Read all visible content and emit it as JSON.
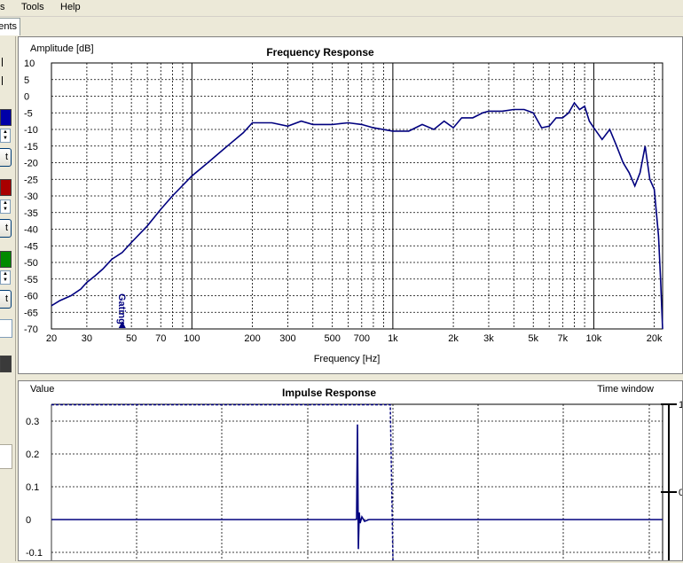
{
  "menu": {
    "items": [
      "s",
      "Tools",
      "Help"
    ]
  },
  "tab": {
    "active_label": "ents"
  },
  "left_panel": {
    "button_label": "t",
    "swatch_colors": [
      "#0000a8",
      "#a80000",
      "#008a00",
      "#3a3a3a"
    ],
    "scroll_up": "▲",
    "scroll_down": "▼"
  },
  "frequency_response": {
    "title": "Frequency Response",
    "ylabel": "Amplitude [dB]",
    "xlabel": "Frequency [Hz]",
    "gating_label": "Gating",
    "line_color": "#00007f"
  },
  "impulse_response": {
    "title": "Impulse Response",
    "ylabel": "Value",
    "window_label": "Time window",
    "right_tick_labels": [
      "1",
      "0"
    ],
    "line_color": "#00007f"
  },
  "chart_data": [
    {
      "type": "line",
      "title": "Frequency Response",
      "xlabel": "Frequency [Hz]",
      "ylabel": "Amplitude [dB]",
      "xscale": "log",
      "xlim": [
        20,
        22000
      ],
      "ylim": [
        -70,
        10
      ],
      "grid": true,
      "x_ticks": [
        20,
        30,
        50,
        70,
        100,
        200,
        300,
        500,
        700,
        1000,
        2000,
        3000,
        5000,
        7000,
        10000,
        20000
      ],
      "x_tick_labels": [
        "20",
        "30",
        "50",
        "70",
        "100",
        "200",
        "300",
        "500",
        "700",
        "1k",
        "2k",
        "3k",
        "5k",
        "7k",
        "10k",
        "20k"
      ],
      "y_ticks": [
        10,
        5,
        0,
        -5,
        -10,
        -15,
        -20,
        -25,
        -30,
        -35,
        -40,
        -45,
        -50,
        -55,
        -60,
        -65,
        -70
      ],
      "gating_frequency": 45,
      "x": [
        20,
        22,
        25,
        28,
        30,
        33,
        36,
        40,
        45,
        50,
        60,
        70,
        80,
        100,
        120,
        150,
        180,
        200,
        250,
        300,
        350,
        400,
        500,
        600,
        700,
        800,
        1000,
        1200,
        1400,
        1600,
        1800,
        2000,
        2200,
        2500,
        2800,
        3000,
        3500,
        4000,
        4500,
        5000,
        5500,
        6000,
        6500,
        7000,
        7500,
        8000,
        8500,
        9000,
        9500,
        10000,
        11000,
        12000,
        13000,
        14000,
        15000,
        16000,
        17000,
        18000,
        19000,
        20000,
        21000,
        21500,
        22000
      ],
      "y": [
        -63,
        -61.5,
        -60,
        -58,
        -56,
        -54,
        -52,
        -49,
        -47,
        -44,
        -39,
        -34,
        -30,
        -24,
        -20,
        -15,
        -11,
        -8,
        -8,
        -9,
        -7.5,
        -8.5,
        -8.5,
        -8,
        -8.5,
        -9.5,
        -10.5,
        -10.5,
        -8.5,
        -10,
        -7.5,
        -9.5,
        -6.5,
        -6.5,
        -5,
        -4.5,
        -4.5,
        -4,
        -4,
        -5,
        -9.5,
        -9,
        -6.5,
        -6.5,
        -5,
        -2,
        -4,
        -3,
        -7.5,
        -9.5,
        -13,
        -10,
        -15,
        -20,
        -23,
        -27,
        -23,
        -15,
        -25,
        -28,
        -42,
        -55,
        -70
      ]
    },
    {
      "type": "line",
      "title": "Impulse Response",
      "ylabel": "Value",
      "ylim": [
        -0.1,
        0.35
      ],
      "y_ticks": [
        0.3,
        0.2,
        0.1,
        0,
        -0.1
      ],
      "grid": true,
      "window_height": 0.35,
      "impulse_peak": 0.29,
      "impulse_trough": -0.09
    }
  ]
}
